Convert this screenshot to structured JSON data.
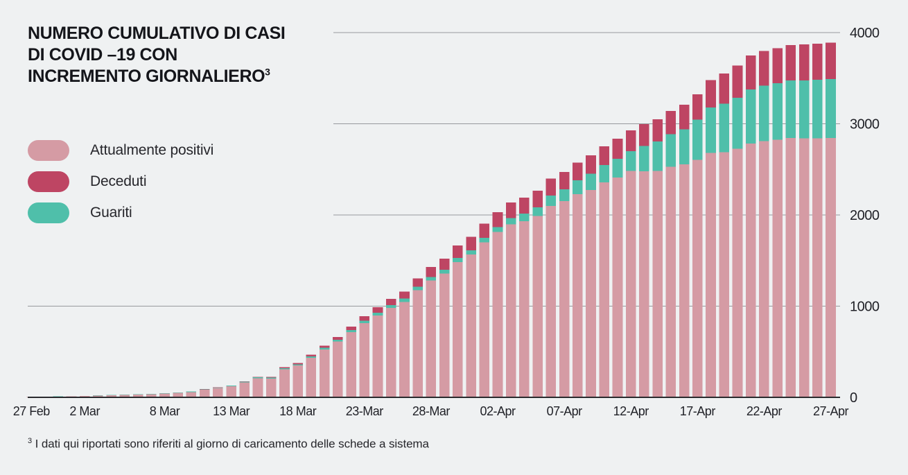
{
  "page": {
    "background": "#EFF1F2"
  },
  "title": {
    "lines": [
      "NUMERO CUMULATIVO DI CASI",
      "DI COVID –19  CON",
      "INCREMENTO GIORNALIERO"
    ],
    "superscript": "3"
  },
  "legend": {
    "items": [
      {
        "label": "Attualmente positivi",
        "color": "#D59BA4",
        "key": "positivi"
      },
      {
        "label": "Deceduti",
        "color": "#BE4563",
        "key": "deceduti"
      },
      {
        "label": "Guariti",
        "color": "#4FBFAA",
        "key": "guariti"
      }
    ]
  },
  "footnote": {
    "superscript": "3",
    "text": " I dati qui riportati sono riferiti al giorno di caricamento delle schede a sistema"
  },
  "colors": {
    "background": "#EFF1F2",
    "grid_line": "#97999D",
    "baseline": "#2A2A2E",
    "axis_text": "#1F2026"
  },
  "chart_data": {
    "type": "bar",
    "stacked": true,
    "title": "NUMERO CUMULATIVO DI CASI DI COVID –19 CON INCREMENTO GIORNALIERO",
    "xlabel": "",
    "ylabel": "",
    "ylim": [
      0,
      4000
    ],
    "y_ticks": [
      0,
      1000,
      2000,
      3000,
      4000
    ],
    "grid": "horizontal",
    "legend_position": "upper-left",
    "stack_order_bottom_to_top": [
      "Attualmente positivi",
      "Guariti",
      "Deceduti"
    ],
    "categories": [
      "27 Feb",
      "28 Feb",
      "29 Feb",
      "1 Mar",
      "2 Mar",
      "3 Mar",
      "4 Mar",
      "5 Mar",
      "6 Mar",
      "7 Mar",
      "8 Mar",
      "9 Mar",
      "10 Mar",
      "11 Mar",
      "12 Mar",
      "13 Mar",
      "14 Mar",
      "15 Mar",
      "16 Mar",
      "17 Mar",
      "18 Mar",
      "19 Mar",
      "20 Mar",
      "21 Mar",
      "22 Mar",
      "23 Mar",
      "24 Mar",
      "25 Mar",
      "26 Mar",
      "27 Mar",
      "28 Mar",
      "29 Mar",
      "30 Mar",
      "31 Mar",
      "1 Apr",
      "2 Apr",
      "3 Apr",
      "4 Apr",
      "5 Apr",
      "6 Apr",
      "7 Apr",
      "8 Apr",
      "9 Apr",
      "10 Apr",
      "11 Apr",
      "12 Apr",
      "13 Apr",
      "14 Apr",
      "15 Apr",
      "16 Apr",
      "17 Apr",
      "18 Apr",
      "19 Apr",
      "20 Apr",
      "21 Apr",
      "22 Apr",
      "23 Apr",
      "24 Apr",
      "25 Apr",
      "26 Apr",
      "27 Apr"
    ],
    "x_ticks": [
      {
        "index": 0,
        "label": "27 Feb"
      },
      {
        "index": 4,
        "label": "2 Mar"
      },
      {
        "index": 10,
        "label": "8 Mar"
      },
      {
        "index": 15,
        "label": "13 Mar"
      },
      {
        "index": 20,
        "label": "18 Mar"
      },
      {
        "index": 25,
        "label": "23-Mar"
      },
      {
        "index": 30,
        "label": "28-Mar"
      },
      {
        "index": 35,
        "label": "02-Apr"
      },
      {
        "index": 40,
        "label": "07-Apr"
      },
      {
        "index": 45,
        "label": "12-Apr"
      },
      {
        "index": 50,
        "label": "17-Apr"
      },
      {
        "index": 55,
        "label": "22-Apr"
      },
      {
        "index": 60,
        "label": "27-Apr"
      }
    ],
    "series": [
      {
        "name": "Attualmente positivi",
        "color": "#D59BA4",
        "values": [
          4,
          6,
          9,
          12,
          15,
          19,
          23,
          27,
          31,
          35,
          40,
          49,
          58,
          82,
          101,
          120,
          162,
          209,
          207,
          309,
          348,
          433,
          526,
          611,
          713,
          815,
          898,
          980,
          1047,
          1176,
          1281,
          1358,
          1483,
          1565,
          1700,
          1812,
          1896,
          1933,
          1988,
          2100,
          2153,
          2229,
          2275,
          2356,
          2412,
          2482,
          2480,
          2482,
          2527,
          2554,
          2605,
          2680,
          2690,
          2725,
          2785,
          2810,
          2825,
          2845,
          2840,
          2842,
          2845
        ]
      },
      {
        "name": "Guariti",
        "color": "#4FBFAA",
        "values": [
          1,
          1,
          1,
          1,
          2,
          2,
          3,
          3,
          4,
          4,
          5,
          5,
          6,
          7,
          7,
          8,
          9,
          10,
          11,
          12,
          15,
          17,
          19,
          21,
          23,
          25,
          29,
          32,
          35,
          38,
          40,
          42,
          44,
          46,
          48,
          55,
          68,
          81,
          94,
          114,
          127,
          150,
          177,
          190,
          205,
          216,
          277,
          323,
          358,
          386,
          440,
          500,
          530,
          560,
          590,
          610,
          620,
          630,
          635,
          640,
          645
        ]
      },
      {
        "name": "Deceduti",
        "color": "#BE4563",
        "values": [
          0,
          0,
          0,
          0,
          0,
          0,
          0,
          0,
          0,
          0,
          0,
          1,
          1,
          1,
          2,
          2,
          4,
          6,
          7,
          9,
          12,
          17,
          23,
          30,
          40,
          50,
          60,
          68,
          78,
          90,
          110,
          120,
          140,
          149,
          157,
          165,
          172,
          178,
          184,
          187,
          190,
          197,
          203,
          208,
          220,
          228,
          240,
          245,
          255,
          270,
          280,
          300,
          330,
          355,
          375,
          380,
          385,
          390,
          395,
          398,
          400
        ]
      }
    ]
  }
}
